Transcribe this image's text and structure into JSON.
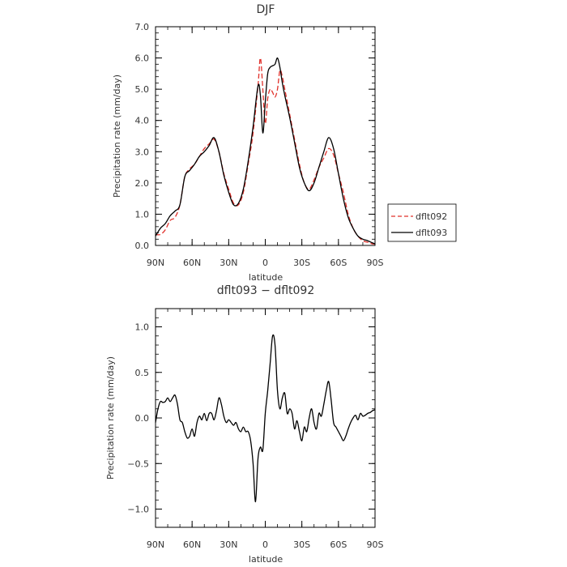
{
  "chart_data": [
    {
      "type": "line",
      "title": "DJF",
      "xlabel": "latitude",
      "ylabel": "Precipitation rate  (mm/day)",
      "x_ticks": [
        "90N",
        "60N",
        "30N",
        "0",
        "30S",
        "60S",
        "90S"
      ],
      "x_tick_values": [
        90,
        60,
        30,
        0,
        -30,
        -60,
        -90
      ],
      "xlim": [
        90,
        -90
      ],
      "y_ticks": [
        "0.0",
        "1.0",
        "2.0",
        "3.0",
        "4.0",
        "5.0",
        "6.0",
        "7.0"
      ],
      "ylim": [
        0,
        7
      ],
      "legend": {
        "position": "right"
      },
      "series": [
        {
          "name": "dflt092",
          "color": "#e0302a",
          "style": "dashed",
          "x": [
            90,
            86,
            82,
            78,
            74,
            70,
            66,
            62,
            58,
            54,
            50,
            46,
            42,
            38,
            34,
            30,
            26,
            22,
            18,
            14,
            10,
            6,
            4,
            2,
            0,
            -2,
            -4,
            -6,
            -8,
            -10,
            -12,
            -14,
            -16,
            -20,
            -24,
            -28,
            -32,
            -36,
            -40,
            -44,
            -48,
            -52,
            -56,
            -60,
            -64,
            -68,
            -72,
            -76,
            -80,
            -84,
            -88,
            -90
          ],
          "y": [
            0.35,
            0.35,
            0.5,
            0.8,
            0.9,
            1.3,
            2.2,
            2.45,
            2.6,
            2.85,
            3.1,
            3.25,
            3.4,
            3.0,
            2.3,
            1.8,
            1.35,
            1.3,
            1.7,
            2.6,
            3.6,
            5.1,
            6.0,
            5.0,
            3.9,
            4.7,
            5.0,
            4.9,
            4.75,
            5.0,
            5.6,
            5.4,
            5.0,
            4.2,
            3.4,
            2.6,
            2.0,
            1.8,
            2.1,
            2.5,
            2.8,
            3.1,
            2.9,
            2.3,
            1.7,
            1.0,
            0.55,
            0.3,
            0.15,
            0.1,
            0.05,
            0.05
          ]
        },
        {
          "name": "dflt093",
          "color": "#000000",
          "style": "solid",
          "x": [
            90,
            86,
            82,
            78,
            74,
            70,
            66,
            62,
            58,
            54,
            50,
            46,
            42,
            38,
            34,
            30,
            26,
            22,
            18,
            14,
            10,
            6,
            4,
            2,
            0,
            -2,
            -4,
            -6,
            -8,
            -10,
            -12,
            -14,
            -16,
            -20,
            -24,
            -28,
            -32,
            -36,
            -40,
            -44,
            -48,
            -52,
            -56,
            -60,
            -64,
            -68,
            -72,
            -76,
            -80,
            -84,
            -88,
            -90
          ],
          "y": [
            0.3,
            0.55,
            0.7,
            0.95,
            1.1,
            1.3,
            2.2,
            2.4,
            2.6,
            2.85,
            3.0,
            3.2,
            3.45,
            3.0,
            2.25,
            1.7,
            1.3,
            1.35,
            1.8,
            2.7,
            3.8,
            5.1,
            4.8,
            3.6,
            4.6,
            5.5,
            5.7,
            5.75,
            5.8,
            6.0,
            5.7,
            5.2,
            4.8,
            4.1,
            3.3,
            2.5,
            2.0,
            1.75,
            2.0,
            2.5,
            3.0,
            3.45,
            3.1,
            2.3,
            1.5,
            0.9,
            0.55,
            0.3,
            0.2,
            0.15,
            0.08,
            0.05
          ]
        }
      ]
    },
    {
      "type": "line",
      "title": "dflt093 − dflt092",
      "xlabel": "latitude",
      "ylabel": "Precipitation rate  (mm/day)",
      "x_ticks": [
        "90N",
        "60N",
        "30N",
        "0",
        "30S",
        "60S",
        "90S"
      ],
      "x_tick_values": [
        90,
        60,
        30,
        0,
        -30,
        -60,
        -90
      ],
      "xlim": [
        90,
        -90
      ],
      "y_ticks": [
        "−1.0",
        "−0.5",
        "0.0",
        "0.5",
        "1.0"
      ],
      "y_tick_values": [
        -1.0,
        -0.5,
        0.0,
        0.5,
        1.0
      ],
      "ylim": [
        -1.2,
        1.2
      ],
      "series": [
        {
          "color": "#000000",
          "style": "solid",
          "x": [
            90,
            88,
            86,
            84,
            82,
            80,
            78,
            76,
            74,
            72,
            70,
            68,
            66,
            64,
            62,
            60,
            58,
            56,
            54,
            52,
            50,
            48,
            46,
            44,
            42,
            40,
            38,
            36,
            34,
            32,
            30,
            28,
            26,
            24,
            22,
            20,
            18,
            16,
            14,
            12,
            10,
            8,
            6,
            4,
            2,
            0,
            -2,
            -4,
            -6,
            -8,
            -10,
            -12,
            -14,
            -16,
            -18,
            -20,
            -22,
            -24,
            -26,
            -28,
            -30,
            -32,
            -34,
            -36,
            -38,
            -40,
            -42,
            -44,
            -46,
            -48,
            -50,
            -52,
            -54,
            -56,
            -58,
            -60,
            -62,
            -64,
            -66,
            -68,
            -70,
            -72,
            -74,
            -76,
            -78,
            -80,
            -82,
            -84,
            -86,
            -88,
            -90
          ],
          "y": [
            -0.05,
            0.1,
            0.18,
            0.17,
            0.18,
            0.22,
            0.18,
            0.22,
            0.25,
            0.15,
            -0.02,
            -0.05,
            -0.15,
            -0.22,
            -0.2,
            -0.12,
            -0.2,
            -0.05,
            0.02,
            -0.02,
            0.05,
            -0.03,
            0.05,
            0.05,
            -0.02,
            0.08,
            0.22,
            0.15,
            0.02,
            -0.05,
            -0.02,
            -0.05,
            -0.08,
            -0.05,
            -0.12,
            -0.15,
            -0.1,
            -0.15,
            -0.15,
            -0.25,
            -0.5,
            -0.92,
            -0.45,
            -0.32,
            -0.35,
            0.05,
            0.3,
            0.6,
            0.9,
            0.8,
            0.3,
            0.1,
            0.22,
            0.27,
            0.05,
            0.1,
            0.05,
            -0.12,
            -0.03,
            -0.15,
            -0.25,
            -0.1,
            -0.15,
            0.0,
            0.1,
            -0.05,
            -0.12,
            0.05,
            0.02,
            0.15,
            0.3,
            0.4,
            0.2,
            -0.05,
            -0.1,
            -0.15,
            -0.2,
            -0.25,
            -0.2,
            -0.12,
            -0.05,
            0.0,
            0.03,
            -0.02,
            0.05,
            0.02,
            0.03,
            0.05,
            0.06,
            0.08,
            0.09
          ]
        }
      ]
    }
  ]
}
